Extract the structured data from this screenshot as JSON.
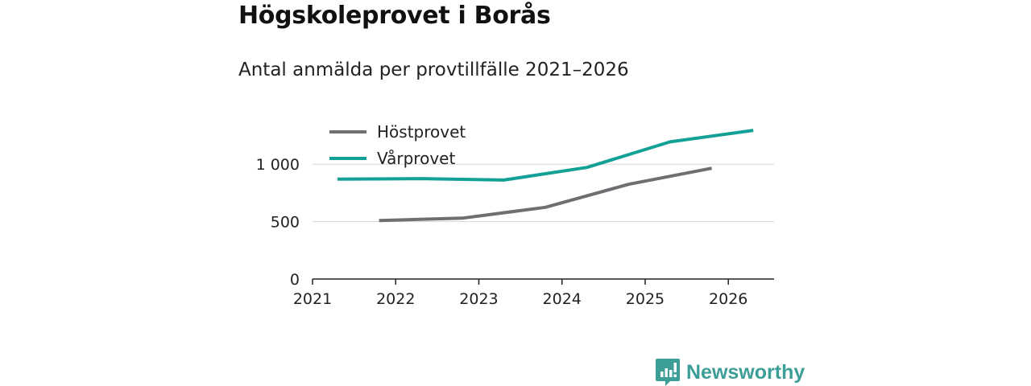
{
  "title": "Högskoleprovet i Borås",
  "subtitle": "Antal anmälda per provtillfälle 2021–2026",
  "brand": {
    "name": "Newsworthy",
    "color": "#3d9e97",
    "icon": "bar-chart-badge-icon"
  },
  "chart_data": {
    "type": "line",
    "title": "Högskoleprovet i Borås",
    "subtitle": "Antal anmälda per provtillfälle 2021–2026",
    "xlabel": "",
    "ylabel": "",
    "xlim": [
      2021,
      2026.55
    ],
    "ylim": [
      0,
      1380
    ],
    "x_ticks": [
      2021,
      2022,
      2023,
      2024,
      2025,
      2026
    ],
    "y_ticks": [
      0,
      500,
      1000
    ],
    "y_tick_labels": [
      "0",
      "500",
      "1 000"
    ],
    "grid": "horizontal",
    "legend_position": "top-left",
    "series": [
      {
        "name": "Höstprovet",
        "color": "#6e6e73",
        "x": [
          2021.8,
          2022.8,
          2023.8,
          2024.8,
          2025.8
        ],
        "values": [
          510,
          530,
          625,
          825,
          965
        ]
      },
      {
        "name": "Vårprovet",
        "color": "#13a096",
        "x": [
          2021.3,
          2022.3,
          2023.3,
          2024.3,
          2025.3,
          2026.3
        ],
        "values": [
          870,
          875,
          862,
          972,
          1195,
          1295
        ]
      }
    ]
  }
}
